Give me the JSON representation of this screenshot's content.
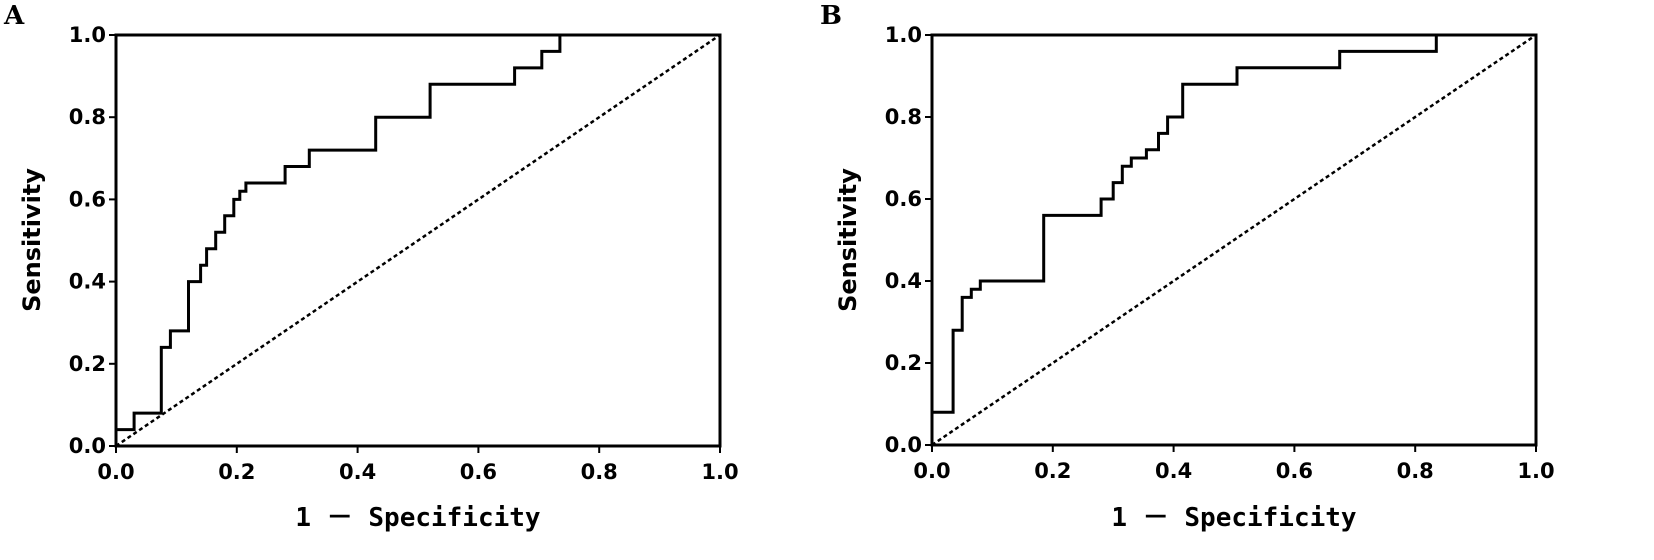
{
  "chart_data": [
    {
      "type": "line",
      "panel_label": "A",
      "title": "",
      "xlabel": "1 － Specificity",
      "ylabel": "Sensitivity",
      "xlim": [
        0,
        1
      ],
      "ylim": [
        0,
        1
      ],
      "x_ticks": [
        "0.0",
        "0.2",
        "0.4",
        "0.6",
        "0.8",
        "1.0"
      ],
      "y_ticks": [
        "0.0",
        "0.2",
        "0.4",
        "0.6",
        "0.8",
        "1.0"
      ],
      "grid": false,
      "legend": "none",
      "series": [
        {
          "style": "step",
          "x": [
            0,
            0.03,
            0.03,
            0.075,
            0.075,
            0.09,
            0.09,
            0.12,
            0.12,
            0.14,
            0.14,
            0.15,
            0.15,
            0.165,
            0.165,
            0.18,
            0.18,
            0.195,
            0.195,
            0.205,
            0.205,
            0.215,
            0.215,
            0.28,
            0.28,
            0.32,
            0.32,
            0.43,
            0.43,
            0.52,
            0.52,
            0.66,
            0.66,
            0.705,
            0.705,
            0.735,
            0.735,
            1.0
          ],
          "y": [
            0.04,
            0.04,
            0.08,
            0.08,
            0.24,
            0.24,
            0.28,
            0.28,
            0.4,
            0.4,
            0.44,
            0.44,
            0.48,
            0.48,
            0.52,
            0.52,
            0.56,
            0.56,
            0.6,
            0.6,
            0.62,
            0.62,
            0.64,
            0.64,
            0.68,
            0.68,
            0.72,
            0.72,
            0.8,
            0.8,
            0.88,
            0.88,
            0.92,
            0.92,
            0.96,
            0.96,
            1.0,
            1.0
          ]
        },
        {
          "style": "dashed",
          "x": [
            0,
            1
          ],
          "y": [
            0,
            1
          ]
        }
      ]
    },
    {
      "type": "line",
      "panel_label": "B",
      "title": "",
      "xlabel": "1 － Specificity",
      "ylabel": "Sensitivity",
      "xlim": [
        0,
        1
      ],
      "ylim": [
        0,
        1
      ],
      "x_ticks": [
        "0.0",
        "0.2",
        "0.4",
        "0.6",
        "0.8",
        "1.0"
      ],
      "y_ticks": [
        "0.0",
        "0.2",
        "0.4",
        "0.6",
        "0.8",
        "1.0"
      ],
      "grid": false,
      "legend": "none",
      "series": [
        {
          "style": "step",
          "x": [
            0,
            0,
            0.035,
            0.035,
            0.05,
            0.05,
            0.065,
            0.065,
            0.08,
            0.08,
            0.185,
            0.185,
            0.28,
            0.28,
            0.3,
            0.3,
            0.315,
            0.315,
            0.33,
            0.33,
            0.355,
            0.355,
            0.375,
            0.375,
            0.39,
            0.39,
            0.415,
            0.415,
            0.505,
            0.505,
            0.675,
            0.675,
            0.835,
            0.835,
            1.0
          ],
          "y": [
            0,
            0.08,
            0.08,
            0.28,
            0.28,
            0.36,
            0.36,
            0.38,
            0.38,
            0.4,
            0.4,
            0.56,
            0.56,
            0.6,
            0.6,
            0.64,
            0.64,
            0.68,
            0.68,
            0.7,
            0.7,
            0.72,
            0.72,
            0.76,
            0.76,
            0.8,
            0.8,
            0.88,
            0.88,
            0.92,
            0.92,
            0.96,
            0.96,
            1.0,
            1.0
          ]
        },
        {
          "style": "dashed",
          "x": [
            0,
            1
          ],
          "y": [
            0,
            1
          ]
        }
      ]
    }
  ]
}
